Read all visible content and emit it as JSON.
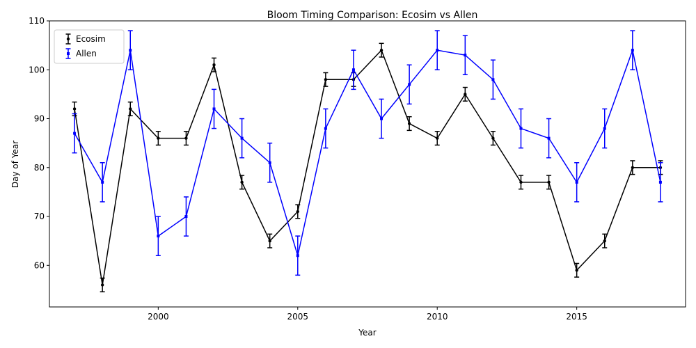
{
  "chart_data": {
    "type": "line",
    "title": "Bloom Timing Comparison: Ecosim vs Allen",
    "xlabel": "Year",
    "ylabel": "Day of Year",
    "xlim": [
      1996.1,
      2018.9
    ],
    "ylim": [
      51.5,
      110
    ],
    "xticks": [
      2000,
      2005,
      2010,
      2015
    ],
    "yticks": [
      60,
      70,
      80,
      90,
      100,
      110
    ],
    "grid": false,
    "legend_position": "top-left",
    "x": [
      1997,
      1998,
      1999,
      2000,
      2001,
      2002,
      2003,
      2004,
      2005,
      2006,
      2007,
      2008,
      2009,
      2010,
      2011,
      2012,
      2013,
      2014,
      2015,
      2016,
      2017,
      2018
    ],
    "series": [
      {
        "name": "Ecosim",
        "color": "#000000",
        "values": [
          92,
          56,
          92,
          86,
          86,
          101,
          77,
          65,
          71,
          98,
          98,
          104,
          89,
          86,
          95,
          86,
          77,
          77,
          59,
          65,
          80,
          80
        ],
        "error": 1.4
      },
      {
        "name": "Allen",
        "color": "#0000ff",
        "values": [
          87,
          77,
          104,
          66,
          70,
          92,
          86,
          81,
          62,
          88,
          100,
          90,
          97,
          104,
          103,
          98,
          88,
          86,
          77,
          88,
          104,
          77
        ],
        "error": 4
      }
    ]
  }
}
